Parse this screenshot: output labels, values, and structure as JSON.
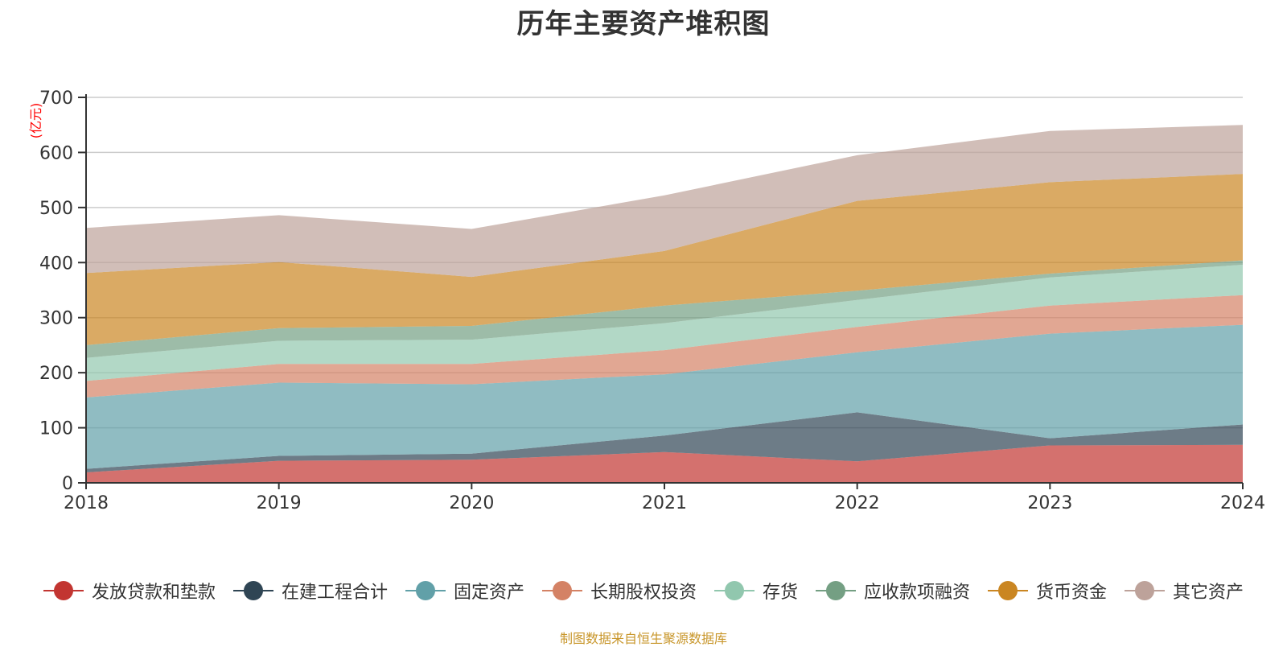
{
  "chart_data": {
    "type": "area",
    "stacked": true,
    "title": "历年主要资产堆积图",
    "ylabel": "(亿元)",
    "xlabel": "",
    "ylim": [
      0,
      700
    ],
    "yticks": [
      "0",
      "100",
      "200",
      "300",
      "400",
      "500",
      "600",
      "700"
    ],
    "ytick_values": [
      0,
      100,
      200,
      300,
      400,
      500,
      600,
      700
    ],
    "categories": [
      "2018",
      "2019",
      "2020",
      "2021",
      "2022",
      "2023",
      "2024"
    ],
    "grid": true,
    "legend_position": "bottom",
    "series": [
      {
        "name": "发放贷款和垫款",
        "color": "#c23531",
        "values": [
          19,
          40,
          42,
          56,
          39,
          68,
          69
        ]
      },
      {
        "name": "在建工程合计",
        "color": "#2f4554",
        "values": [
          6.5,
          9,
          11,
          30,
          89,
          13,
          37
        ]
      },
      {
        "name": "固定资产",
        "color": "#61a0a8",
        "values": [
          129.5,
          133,
          126,
          111,
          109,
          190,
          181
        ]
      },
      {
        "name": "长期股权投资",
        "color": "#d48265",
        "values": [
          30,
          34,
          37,
          44,
          46,
          51,
          54
        ]
      },
      {
        "name": "存货",
        "color": "#91c7ae",
        "values": [
          42,
          42,
          44,
          49,
          49,
          51,
          55
        ]
      },
      {
        "name": "应收款项融资",
        "color": "#749f83",
        "values": [
          23,
          23,
          25,
          32,
          17,
          7,
          8
        ]
      },
      {
        "name": "货币资金",
        "color": "#ca8622",
        "values": [
          131,
          120,
          89,
          99,
          163,
          166,
          157
        ]
      },
      {
        "name": "其它资产",
        "color": "#bda29a",
        "values": [
          82,
          85,
          87,
          101,
          83,
          93,
          89
        ]
      }
    ]
  },
  "source_note": "制图数据来自恒生聚源数据库"
}
